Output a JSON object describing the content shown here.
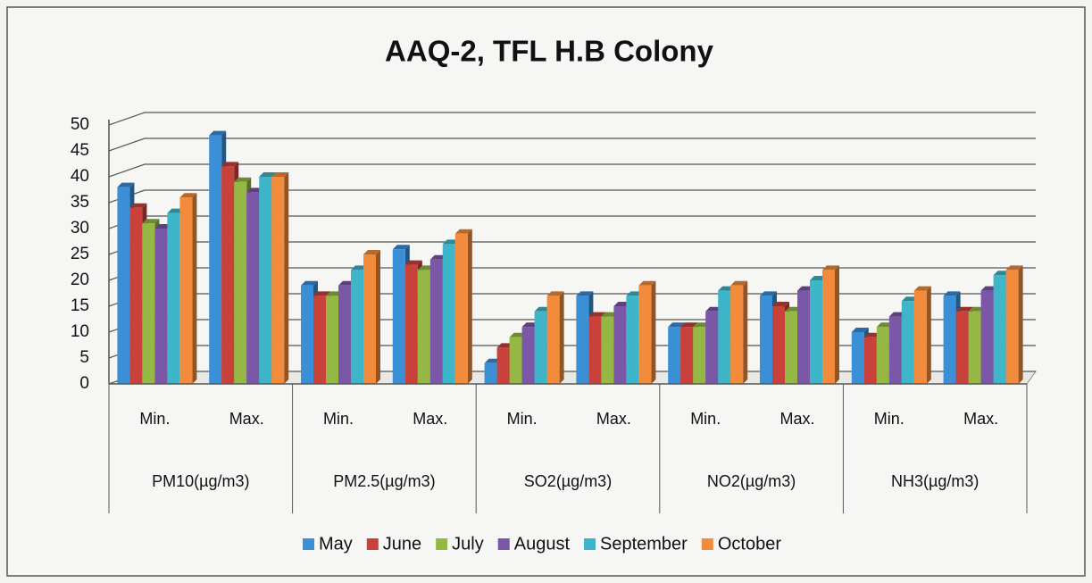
{
  "chart_data": {
    "type": "bar3d",
    "title": "AAQ-2, TFL H.B Colony",
    "categories": [
      "Min.",
      "Max.",
      "Min.",
      "Max.",
      "Min.",
      "Max.",
      "Min.",
      "Max.",
      "Min.",
      "Max."
    ],
    "category_groups": [
      "PM10(µg/m3)",
      "PM2.5(µg/m3)",
      "SO2(µg/m3)",
      "NO2(µg/m3)",
      "NH3(µg/m3)"
    ],
    "series": [
      {
        "name": "May",
        "color": "#3a8fd6",
        "values": [
          38,
          48,
          19,
          26,
          4,
          17,
          11,
          17,
          10,
          17
        ]
      },
      {
        "name": "June",
        "color": "#c8413b",
        "values": [
          34,
          42,
          17,
          23,
          7,
          13,
          11,
          15,
          9,
          14
        ]
      },
      {
        "name": "July",
        "color": "#94b843",
        "values": [
          31,
          39,
          17,
          22,
          9,
          13,
          11,
          14,
          11,
          14
        ]
      },
      {
        "name": "August",
        "color": "#7b57a8",
        "values": [
          30,
          37,
          19,
          24,
          11,
          15,
          14,
          18,
          13,
          18
        ]
      },
      {
        "name": "September",
        "color": "#3fb5c9",
        "values": [
          33,
          40,
          22,
          27,
          14,
          17,
          18,
          20,
          16,
          21
        ]
      },
      {
        "name": "October",
        "color": "#f28c3c",
        "values": [
          36,
          40,
          25,
          29,
          17,
          19,
          19,
          22,
          18,
          22
        ]
      }
    ],
    "ylim": [
      0,
      50
    ],
    "yticks": [
      0,
      5,
      10,
      15,
      20,
      25,
      30,
      35,
      40,
      45,
      50
    ],
    "grid": true,
    "legend": "bottom"
  }
}
